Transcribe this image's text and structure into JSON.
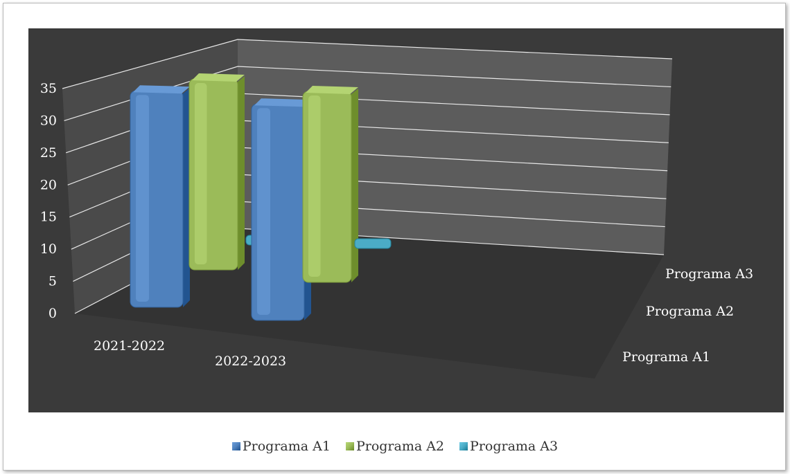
{
  "chart_data": {
    "type": "bar",
    "style": "3d-column",
    "categories": [
      "2021-2022",
      "2022-2023"
    ],
    "series": [
      {
        "name": "Programa A1",
        "values": [
          34,
          34
        ],
        "color": "#4f81bd"
      },
      {
        "name": "Programa A2",
        "values": [
          30,
          30
        ],
        "color": "#9bbb59"
      },
      {
        "name": "Programa A3",
        "values": [
          0,
          0
        ],
        "color": "#4bacc6"
      }
    ],
    "ylim": [
      0,
      35
    ],
    "yticks": [
      0,
      5,
      10,
      15,
      20,
      25,
      30,
      35
    ],
    "depth_labels": [
      "Programa A1",
      "Programa A2",
      "Programa A3"
    ],
    "grid": true,
    "legend": "bottom"
  }
}
